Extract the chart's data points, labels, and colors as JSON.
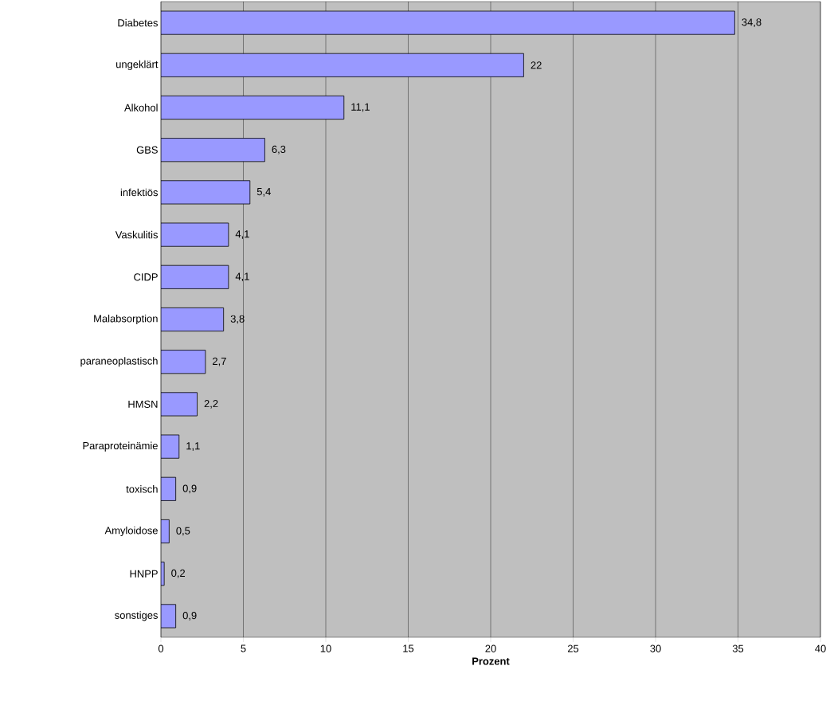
{
  "chart_data": {
    "type": "bar",
    "orientation": "horizontal",
    "xlabel": "Prozent",
    "categories": [
      "Diabetes",
      "ungeklärt",
      "Alkohol",
      "GBS",
      "infektiös",
      "Vaskulitis",
      "CIDP",
      "Malabsorption",
      "paraneoplastisch",
      "HMSN",
      "Paraproteinämie",
      "toxisch",
      "Amyloidose",
      "HNPP",
      "sonstiges"
    ],
    "values": [
      34.8,
      22,
      11.1,
      6.3,
      5.4,
      4.1,
      4.1,
      3.8,
      2.7,
      2.2,
      1.1,
      0.9,
      0.5,
      0.2,
      0.9
    ],
    "value_labels": [
      "34,8",
      "22",
      "11,1",
      "6,3",
      "5,4",
      "4,1",
      "4,1",
      "3,8",
      "2,7",
      "2,2",
      "1,1",
      "0,9",
      "0,5",
      "0,2",
      "0,9"
    ],
    "color": "#9999ff",
    "xlim": [
      0,
      40
    ],
    "xticks": [
      0,
      5,
      10,
      15,
      20,
      25,
      30,
      35,
      40
    ],
    "grid": "x"
  }
}
